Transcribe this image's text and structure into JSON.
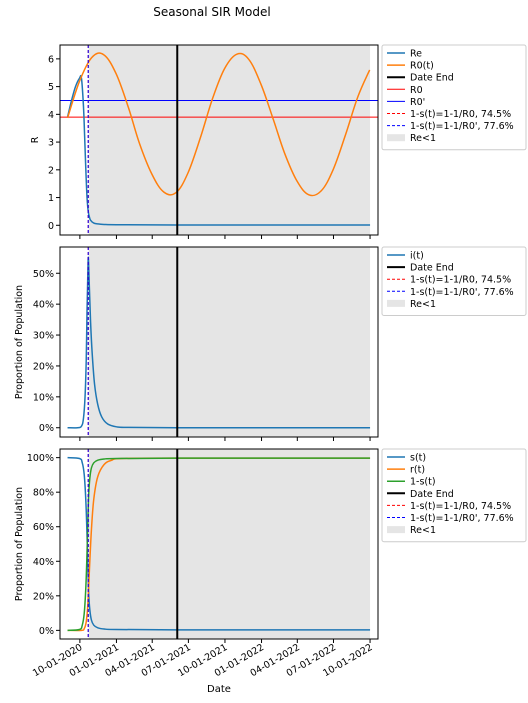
{
  "title": "Seasonal SIR Model",
  "xlabel": "Date",
  "x_ticks": [
    "10-01-2020",
    "01-01-2021",
    "04-01-2021",
    "07-01-2021",
    "10-01-2021",
    "01-01-2022",
    "04-01-2022",
    "07-01-2022",
    "10-01-2022"
  ],
  "colors": {
    "blue": "#1f77b4",
    "orange": "#ff7f0e",
    "green": "#2ca02c",
    "red": "#ff0000",
    "navy": "#0000ff",
    "black": "#000000",
    "shade": "#e5e5e5"
  },
  "chart_data": [
    {
      "type": "line",
      "ylabel": "R",
      "xlim": [
        "2020-08-12",
        "2022-10-21"
      ],
      "ylim": [
        -0.35,
        6.5
      ],
      "y_ticks": [
        {
          "value": 0,
          "label": "0"
        },
        {
          "value": 1,
          "label": "1"
        },
        {
          "value": 2,
          "label": "2"
        },
        {
          "value": 3,
          "label": "3"
        },
        {
          "value": 4,
          "label": "4"
        },
        {
          "value": 5,
          "label": "5"
        },
        {
          "value": 6,
          "label": "6"
        }
      ],
      "shade_range": [
        "2020-10-23",
        "2022-10-01"
      ],
      "date_end": "2021-06-03",
      "hlines": [
        {
          "name": "R0",
          "value": 3.9,
          "color": "#ff0000"
        },
        {
          "name": "R0'",
          "value": 4.5,
          "color": "#0000ff"
        }
      ],
      "vlines": [
        {
          "name": "1-s(t)=1-1/R0, 74.5%",
          "x": "2020-10-22",
          "color": "#ff0000"
        },
        {
          "name": "1-s(t)=1-1/R0', 77.6%",
          "x": "2020-10-22",
          "color": "#0000ff"
        }
      ],
      "series": [
        {
          "name": "Re",
          "color": "#1f77b4",
          "x": [
            "2020-08-31",
            "2020-09-10",
            "2020-09-20",
            "2020-09-30",
            "2020-10-05",
            "2020-10-10",
            "2020-10-13",
            "2020-10-16",
            "2020-10-19",
            "2020-10-22",
            "2020-10-25",
            "2020-10-28",
            "2020-11-05",
            "2020-11-15",
            "2020-12-01",
            "2021-01-01",
            "2021-06-01",
            "2022-01-01",
            "2022-10-01"
          ],
          "y": [
            3.9,
            4.5,
            5.0,
            5.3,
            5.3,
            4.3,
            3.2,
            2.0,
            1.0,
            0.5,
            0.3,
            0.18,
            0.08,
            0.05,
            0.03,
            0.02,
            0.01,
            0.01,
            0.01
          ]
        },
        {
          "name": "R0(t)",
          "color": "#ff7f0e",
          "x": [
            "2020-08-31",
            "2020-09-30",
            "2020-10-31",
            "2020-11-30",
            "2020-12-31",
            "2021-01-31",
            "2021-02-28",
            "2021-03-31",
            "2021-04-30",
            "2021-05-31",
            "2021-06-30",
            "2021-07-31",
            "2021-08-31",
            "2021-09-30",
            "2021-10-31",
            "2021-11-30",
            "2021-12-31",
            "2022-01-31",
            "2022-02-28",
            "2022-03-31",
            "2022-04-30",
            "2022-05-31",
            "2022-06-30",
            "2022-07-31",
            "2022-08-31",
            "2022-09-30"
          ],
          "y": [
            3.87,
            5.19,
            6.05,
            6.15,
            5.47,
            4.25,
            2.95,
            1.85,
            1.2,
            1.18,
            1.89,
            3.15,
            4.58,
            5.65,
            6.17,
            5.98,
            5.07,
            3.8,
            2.6,
            1.6,
            1.1,
            1.24,
            2.0,
            3.25,
            4.62,
            5.6
          ]
        }
      ],
      "legend": [
        "Re",
        "R0(t)",
        "Date End",
        "R0",
        "R0'",
        "1-s(t)=1-1/R0, 74.5%",
        "1-s(t)=1-1/R0', 77.6%",
        "Re<1"
      ]
    },
    {
      "type": "line",
      "ylabel": "Proportion of Population",
      "xlim": [
        "2020-08-12",
        "2022-10-21"
      ],
      "ylim": [
        -0.03,
        0.585
      ],
      "y_ticks": [
        {
          "value": 0,
          "label": "0%"
        },
        {
          "value": 0.1,
          "label": "10%"
        },
        {
          "value": 0.2,
          "label": "20%"
        },
        {
          "value": 0.3,
          "label": "30%"
        },
        {
          "value": 0.4,
          "label": "40%"
        },
        {
          "value": 0.5,
          "label": "50%"
        }
      ],
      "shade_range": [
        "2020-10-23",
        "2022-10-01"
      ],
      "date_end": "2021-06-03",
      "vlines": [
        {
          "name": "1-s(t)=1-1/R0, 74.5%",
          "x": "2020-10-22",
          "color": "#ff0000"
        },
        {
          "name": "1-s(t)=1-1/R0', 77.6%",
          "x": "2020-10-22",
          "color": "#0000ff"
        }
      ],
      "series": [
        {
          "name": "i(t)",
          "color": "#1f77b4",
          "x": [
            "2020-08-31",
            "2020-09-25",
            "2020-10-05",
            "2020-10-10",
            "2020-10-14",
            "2020-10-17",
            "2020-10-19",
            "2020-10-21",
            "2020-10-22",
            "2020-10-23",
            "2020-10-25",
            "2020-10-28",
            "2020-11-01",
            "2020-11-07",
            "2020-11-15",
            "2020-11-25",
            "2020-12-10",
            "2021-01-01",
            "2021-02-01",
            "2021-06-01",
            "2022-01-01",
            "2022-10-01"
          ],
          "y": [
            0.0,
            0.0,
            0.005,
            0.03,
            0.1,
            0.22,
            0.38,
            0.5,
            0.55,
            0.53,
            0.45,
            0.34,
            0.24,
            0.14,
            0.075,
            0.035,
            0.012,
            0.003,
            0.001,
            0.0,
            0.0,
            0.0
          ]
        }
      ],
      "legend": [
        "i(t)",
        "Date End",
        "1-s(t)=1-1/R0, 74.5%",
        "1-s(t)=1-1/R0', 77.6%",
        "Re<1"
      ]
    },
    {
      "type": "line",
      "ylabel": "Proportion of Population",
      "xlim": [
        "2020-08-12",
        "2022-10-21"
      ],
      "ylim": [
        -0.05,
        1.05
      ],
      "y_ticks": [
        {
          "value": 0,
          "label": "0%"
        },
        {
          "value": 0.2,
          "label": "20%"
        },
        {
          "value": 0.4,
          "label": "40%"
        },
        {
          "value": 0.6,
          "label": "60%"
        },
        {
          "value": 0.8,
          "label": "80%"
        },
        {
          "value": 1.0,
          "label": "100%"
        }
      ],
      "shade_range": [
        "2020-10-23",
        "2022-10-01"
      ],
      "date_end": "2021-06-03",
      "vlines": [
        {
          "name": "1-s(t)=1-1/R0, 74.5%",
          "x": "2020-10-22",
          "color": "#ff0000"
        },
        {
          "name": "1-s(t)=1-1/R0', 77.6%",
          "x": "2020-10-22",
          "color": "#0000ff"
        }
      ],
      "series": [
        {
          "name": "s(t)",
          "color": "#1f77b4",
          "x": [
            "2020-08-31",
            "2020-09-30",
            "2020-10-07",
            "2020-10-12",
            "2020-10-16",
            "2020-10-19",
            "2020-10-21",
            "2020-10-23",
            "2020-10-26",
            "2020-10-30",
            "2020-11-05",
            "2020-11-15",
            "2020-12-01",
            "2021-01-01",
            "2021-06-01",
            "2022-01-01",
            "2022-10-01"
          ],
          "y": [
            1.0,
            0.995,
            0.97,
            0.9,
            0.75,
            0.55,
            0.38,
            0.22,
            0.12,
            0.06,
            0.03,
            0.015,
            0.008,
            0.005,
            0.003,
            0.003,
            0.003
          ]
        },
        {
          "name": "r(t)",
          "color": "#ff7f0e",
          "x": [
            "2020-08-31",
            "2020-10-05",
            "2020-10-12",
            "2020-10-17",
            "2020-10-21",
            "2020-10-25",
            "2020-10-30",
            "2020-11-05",
            "2020-11-15",
            "2020-12-01",
            "2020-12-20",
            "2021-01-15",
            "2021-06-01",
            "2022-01-01",
            "2022-10-01"
          ],
          "y": [
            0.0,
            0.0,
            0.01,
            0.05,
            0.15,
            0.35,
            0.58,
            0.76,
            0.89,
            0.96,
            0.985,
            0.995,
            0.997,
            0.997,
            0.997
          ]
        },
        {
          "name": "1-s(t)",
          "color": "#2ca02c",
          "x": [
            "2020-08-31",
            "2020-09-30",
            "2020-10-07",
            "2020-10-12",
            "2020-10-16",
            "2020-10-19",
            "2020-10-21",
            "2020-10-23",
            "2020-10-26",
            "2020-10-30",
            "2020-11-05",
            "2020-11-15",
            "2020-12-01",
            "2021-01-01",
            "2021-06-01",
            "2022-01-01",
            "2022-10-01"
          ],
          "y": [
            0.0,
            0.005,
            0.03,
            0.1,
            0.25,
            0.45,
            0.62,
            0.78,
            0.88,
            0.94,
            0.97,
            0.985,
            0.992,
            0.995,
            0.997,
            0.997,
            0.997
          ]
        }
      ],
      "legend": [
        "s(t)",
        "r(t)",
        "1-s(t)",
        "Date End",
        "1-s(t)=1-1/R0, 74.5%",
        "1-s(t)=1-1/R0', 77.6%",
        "Re<1"
      ]
    }
  ]
}
